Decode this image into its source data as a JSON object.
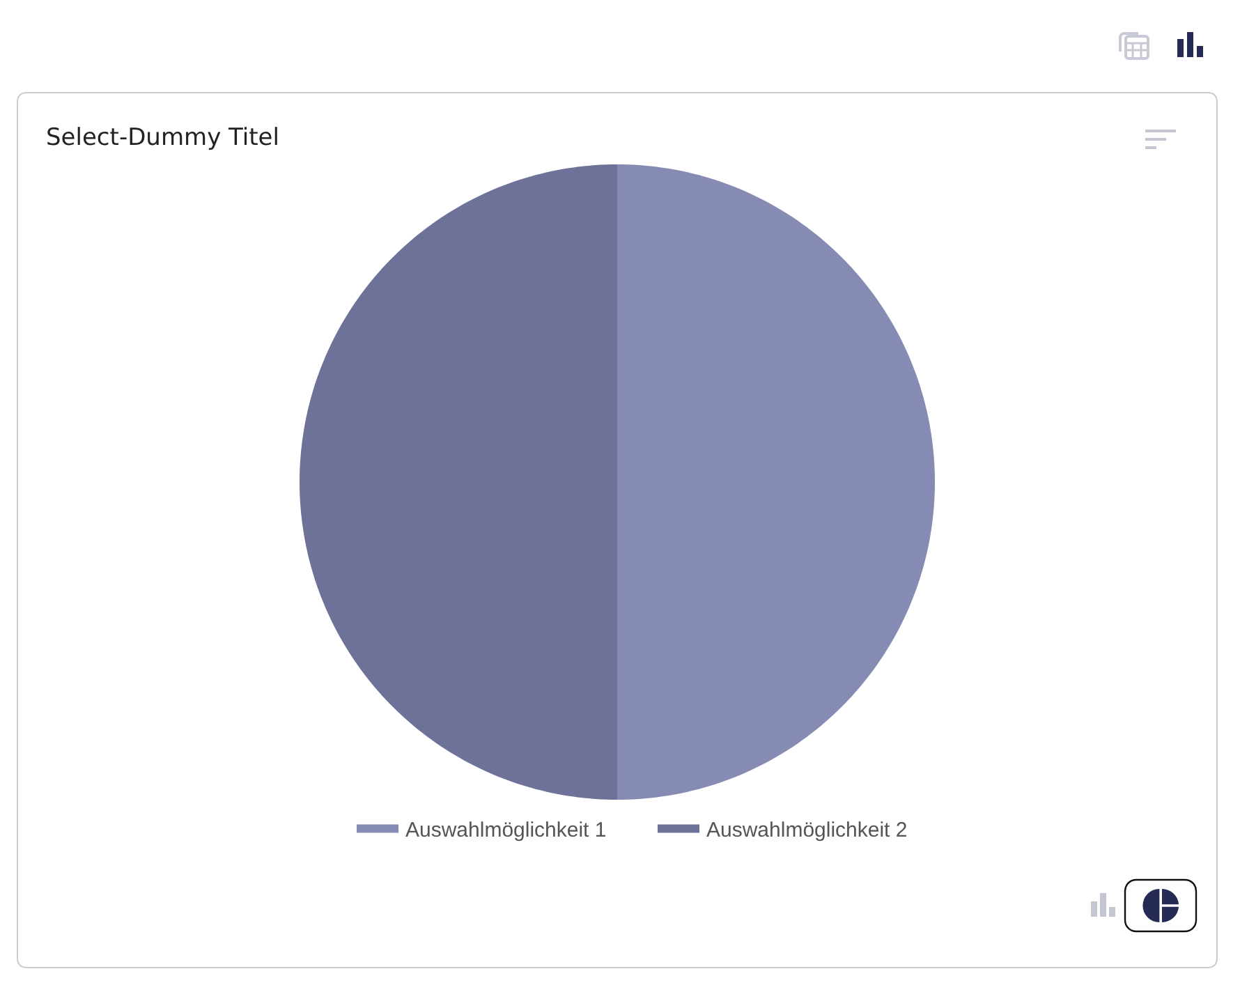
{
  "chart_data": {
    "type": "pie",
    "title": "Select-Dummy Titel",
    "categories": [
      "Auswahlmöglichkeit 1",
      "Auswahlmöglichkeit 2"
    ],
    "values": [
      50,
      50
    ],
    "colors": [
      "#858bb2",
      "#6e7298"
    ],
    "legend": "bottom"
  }
}
